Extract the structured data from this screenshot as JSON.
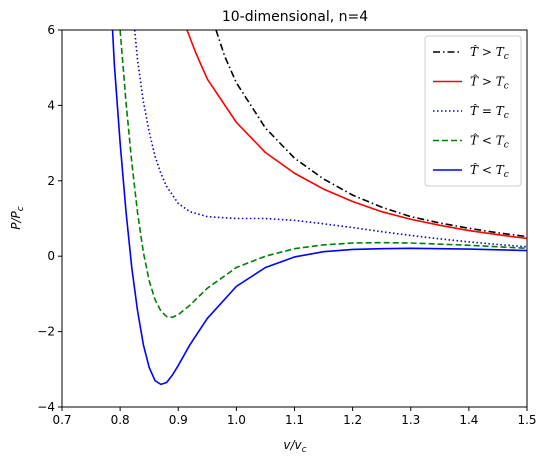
{
  "chart_data": {
    "type": "line",
    "title": "10-dimensional, n=4",
    "xlabel": "v/v",
    "xlabel_sub": "c",
    "ylabel": "P/P",
    "ylabel_sub": "c",
    "xlim": [
      0.7,
      1.5
    ],
    "ylim": [
      -4,
      6
    ],
    "xticks": [
      0.7,
      0.8,
      0.9,
      1.0,
      1.1,
      1.2,
      1.3,
      1.4,
      1.5
    ],
    "xtick_labels": [
      "0.7",
      "0.8",
      "0.9",
      "1.0",
      "1.1",
      "1.2",
      "1.3",
      "1.4",
      "1.5"
    ],
    "yticks": [
      -4,
      -2,
      0,
      2,
      4,
      6
    ],
    "ytick_labels": [
      "−4",
      "−2",
      "0",
      "2",
      "4",
      "6"
    ],
    "grid": false,
    "legend_position": "top-right",
    "series": [
      {
        "legend": "T̂ > T",
        "legend_sub": "c",
        "color": "#000000",
        "dash": "dashdot",
        "x": [
          0.965,
          0.98,
          1.0,
          1.05,
          1.1,
          1.15,
          1.2,
          1.25,
          1.3,
          1.35,
          1.4,
          1.45,
          1.5
        ],
        "y": [
          6.0,
          5.3,
          4.6,
          3.4,
          2.6,
          2.05,
          1.62,
          1.3,
          1.05,
          0.88,
          0.74,
          0.62,
          0.52
        ]
      },
      {
        "legend": "T̂ > T",
        "legend_sub": "c",
        "color": "#ff0000",
        "dash": "solid",
        "x": [
          0.915,
          0.93,
          0.95,
          1.0,
          1.05,
          1.1,
          1.15,
          1.2,
          1.25,
          1.3,
          1.35,
          1.4,
          1.45,
          1.5
        ],
        "y": [
          6.0,
          5.4,
          4.7,
          3.55,
          2.75,
          2.2,
          1.78,
          1.45,
          1.18,
          0.98,
          0.82,
          0.68,
          0.57,
          0.47
        ]
      },
      {
        "legend": "T̂ = T",
        "legend_sub": "c",
        "color": "#0000cc",
        "dash": "dotted",
        "x": [
          0.825,
          0.83,
          0.84,
          0.85,
          0.86,
          0.87,
          0.88,
          0.9,
          0.92,
          0.95,
          1.0,
          1.05,
          1.1,
          1.15,
          1.2,
          1.25,
          1.3,
          1.35,
          1.4,
          1.45,
          1.5
        ],
        "y": [
          6.0,
          5.2,
          4.1,
          3.3,
          2.65,
          2.2,
          1.85,
          1.4,
          1.18,
          1.05,
          1.0,
          1.0,
          0.95,
          0.86,
          0.76,
          0.65,
          0.55,
          0.46,
          0.38,
          0.31,
          0.25
        ]
      },
      {
        "legend": "T̂ < T",
        "legend_sub": "c",
        "color": "#008000",
        "dash": "dashed",
        "x": [
          0.8,
          0.81,
          0.82,
          0.83,
          0.84,
          0.85,
          0.86,
          0.87,
          0.88,
          0.89,
          0.9,
          0.92,
          0.95,
          1.0,
          1.05,
          1.1,
          1.15,
          1.2,
          1.25,
          1.3,
          1.35,
          1.4,
          1.45,
          1.5
        ],
        "y": [
          6.0,
          4.1,
          2.5,
          1.15,
          0.1,
          -0.65,
          -1.15,
          -1.45,
          -1.6,
          -1.62,
          -1.55,
          -1.3,
          -0.85,
          -0.3,
          0.0,
          0.2,
          0.3,
          0.35,
          0.36,
          0.35,
          0.32,
          0.29,
          0.25,
          0.21
        ]
      },
      {
        "legend": "T̂ < T",
        "legend_sub": "c",
        "color": "#0000ff",
        "dash": "solid",
        "x": [
          0.787,
          0.79,
          0.8,
          0.81,
          0.82,
          0.83,
          0.84,
          0.85,
          0.86,
          0.87,
          0.88,
          0.89,
          0.9,
          0.92,
          0.95,
          1.0,
          1.05,
          1.1,
          1.15,
          1.2,
          1.25,
          1.3,
          1.35,
          1.4,
          1.45,
          1.5
        ],
        "y": [
          6.0,
          5.1,
          3.0,
          1.2,
          -0.3,
          -1.45,
          -2.35,
          -2.95,
          -3.3,
          -3.4,
          -3.35,
          -3.15,
          -2.9,
          -2.35,
          -1.65,
          -0.8,
          -0.3,
          -0.02,
          0.12,
          0.18,
          0.2,
          0.21,
          0.2,
          0.19,
          0.17,
          0.15
        ]
      }
    ]
  }
}
